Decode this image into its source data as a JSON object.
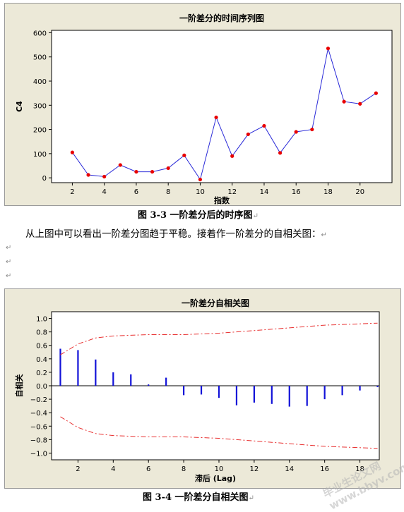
{
  "chart_data": [
    {
      "type": "line",
      "title": "一阶差分的时间序列图",
      "xlabel": "指数",
      "ylabel": "C4",
      "xlim": [
        0.7,
        22
      ],
      "ylim": [
        -20,
        610
      ],
      "xticks": [
        2,
        4,
        6,
        8,
        10,
        12,
        14,
        16,
        18,
        20
      ],
      "yticks": [
        0,
        100,
        200,
        300,
        400,
        500,
        600
      ],
      "x": [
        2,
        3,
        4,
        5,
        6,
        7,
        8,
        9,
        10,
        11,
        12,
        13,
        14,
        15,
        16,
        17,
        18,
        19,
        20,
        21
      ],
      "y": [
        105,
        12,
        5,
        53,
        25,
        25,
        40,
        93,
        -7,
        250,
        90,
        180,
        215,
        103,
        190,
        200,
        535,
        315,
        306,
        350
      ],
      "line_color": "#2a2ad8",
      "marker_color": "#e80000",
      "grid": false
    },
    {
      "type": "bar",
      "title": "一阶差分自相关图",
      "xlabel": "滞后 (Lag)",
      "ylabel": "自相关",
      "xlim": [
        0.5,
        19.1
      ],
      "ylim": [
        -1.1,
        1.1
      ],
      "xticks": [
        2,
        4,
        6,
        8,
        10,
        12,
        14,
        16,
        18
      ],
      "yticks": [
        -1.0,
        -0.8,
        -0.6,
        -0.4,
        -0.2,
        0.0,
        0.2,
        0.4,
        0.6,
        0.8,
        1.0
      ],
      "lags": [
        1,
        2,
        3,
        4,
        5,
        6,
        7,
        8,
        9,
        10,
        11,
        12,
        13,
        14,
        15,
        16,
        17,
        18,
        19
      ],
      "acf": [
        0.55,
        0.53,
        0.39,
        0.2,
        0.17,
        0.02,
        0.12,
        -0.14,
        -0.13,
        -0.18,
        -0.29,
        -0.25,
        -0.27,
        -0.31,
        -0.3,
        -0.2,
        -0.14,
        -0.07,
        -0.02
      ],
      "upper_limit": [
        0.46,
        0.62,
        0.71,
        0.74,
        0.75,
        0.76,
        0.76,
        0.76,
        0.77,
        0.78,
        0.8,
        0.82,
        0.84,
        0.86,
        0.88,
        0.9,
        0.91,
        0.92,
        0.93
      ],
      "lower_limit": [
        -0.46,
        -0.62,
        -0.71,
        -0.74,
        -0.75,
        -0.76,
        -0.76,
        -0.76,
        -0.77,
        -0.78,
        -0.8,
        -0.82,
        -0.84,
        -0.86,
        -0.88,
        -0.9,
        -0.91,
        -0.92,
        -0.93
      ],
      "bar_color": "#1212d8",
      "limit_color": "#e83030",
      "grid": false
    }
  ],
  "captions": {
    "fig3": "图 3-3  一阶差分后的时序图",
    "fig4": "图 3-4  一阶差分自相关图"
  },
  "body_text": {
    "paragraph": "从上图中可以看出一阶差分图趋于平稳。接着作一阶差分的自相关图：",
    "para_mark": "↵"
  },
  "watermark": "毕业生论文网  www.bbyv.com"
}
